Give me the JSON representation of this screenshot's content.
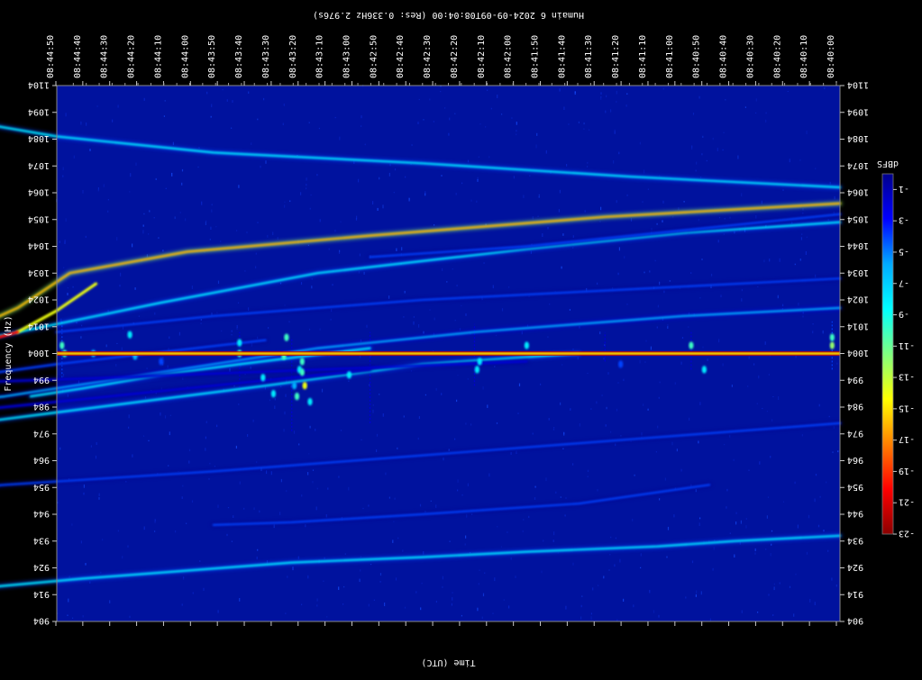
{
  "chart_data": {
    "type": "heatmap",
    "title": "Humain 6 2024-09-09T08:04:00 (Res: 0.336Hz 2.976s)",
    "xlabel": "Time (UTC)",
    "ylabel": "Frequency (Hz)",
    "x_ticks": [
      "08:40:00",
      "08:40:10",
      "08:40:20",
      "08:40:30",
      "08:40:40",
      "08:40:50",
      "08:41:00",
      "08:41:10",
      "08:41:20",
      "08:41:30",
      "08:41:40",
      "08:41:50",
      "08:42:00",
      "08:42:10",
      "08:42:20",
      "08:42:30",
      "08:42:40",
      "08:42:50",
      "08:43:00",
      "08:43:10",
      "08:43:20",
      "08:43:30",
      "08:43:40",
      "08:43:50",
      "08:44:00",
      "08:44:10",
      "08:44:20",
      "08:44:30",
      "08:44:40",
      "08:44:50"
    ],
    "y_ticks": [
      "904",
      "914",
      "924",
      "934",
      "944",
      "954",
      "964",
      "974",
      "984",
      "994",
      "1004",
      "1014",
      "1024",
      "1034",
      "1044",
      "1054",
      "1064",
      "1074",
      "1084",
      "1094",
      "1104"
    ],
    "colorbar": {
      "label": "dBFS",
      "ticks": [
        "-23",
        "-21",
        "-19",
        "-17",
        "-15",
        "-13",
        "-11",
        "-9",
        "-7",
        "-5",
        "-3",
        "-1"
      ],
      "range": [
        -23,
        0
      ],
      "colors": [
        "#00008b",
        "#0000ff",
        "#00aaff",
        "#00ffff",
        "#80ff80",
        "#ffff00",
        "#ff8000",
        "#ff0000",
        "#8b0000"
      ]
    },
    "background_color": "#00129e",
    "carrier": {
      "frequency_hz": 1004,
      "color": "#e8c200"
    },
    "traces": [
      {
        "points": [
          [
            0,
            1060
          ],
          [
            90,
            1055
          ],
          [
            180,
            1048
          ],
          [
            250,
            1042
          ],
          [
            295,
            1034
          ],
          [
            315,
            1021
          ],
          [
            340,
            1010
          ],
          [
            360,
            999
          ],
          [
            400,
            992
          ],
          [
            450,
            987
          ],
          [
            500,
            985
          ]
        ],
        "level": -7
      },
      {
        "points": [
          [
            0,
            1066
          ],
          [
            80,
            1070
          ],
          [
            160,
            1075
          ],
          [
            240,
            1079
          ],
          [
            300,
            1085
          ],
          [
            360,
            1095
          ],
          [
            420,
            1104
          ],
          [
            480,
            1113
          ],
          [
            500,
            1116
          ]
        ],
        "level": -15
      },
      {
        "points": [
          [
            0,
            1053
          ],
          [
            60,
            1049
          ],
          [
            120,
            1043
          ],
          [
            200,
            1034
          ],
          [
            260,
            1023
          ],
          [
            300,
            1015
          ],
          [
            340,
            1007
          ],
          [
            400,
            994
          ],
          [
            460,
            985
          ],
          [
            500,
            978
          ]
        ],
        "level": -15
      },
      {
        "points": [
          [
            100,
            1004
          ],
          [
            160,
            1000
          ],
          [
            220,
            992
          ],
          [
            300,
            982
          ],
          [
            380,
            972
          ],
          [
            460,
            962
          ],
          [
            500,
            955
          ]
        ],
        "level": -15
      },
      {
        "points": [
          [
            0,
            1021
          ],
          [
            60,
            1018
          ],
          [
            140,
            1012
          ],
          [
            200,
            1006
          ],
          [
            260,
            997
          ],
          [
            320,
            988
          ],
          [
            380,
            982
          ],
          [
            440,
            977
          ],
          [
            500,
            974
          ]
        ],
        "level": -17
      },
      {
        "points": [
          [
            180,
            1006
          ],
          [
            230,
            1000
          ],
          [
            260,
            996
          ],
          [
            290,
            991
          ],
          [
            310,
            988
          ]
        ],
        "level": -15
      },
      {
        "points": [
          [
            0,
            1032
          ],
          [
            80,
            1028
          ],
          [
            160,
            1024
          ],
          [
            240,
            1018
          ],
          [
            300,
            1012
          ]
        ],
        "level": -19
      },
      {
        "points": [
          [
            220,
            1009
          ],
          [
            300,
            1000
          ],
          [
            360,
            992
          ],
          [
            420,
            985
          ],
          [
            500,
            978
          ]
        ],
        "level": -19
      },
      {
        "points": [
          [
            0,
            1056
          ],
          [
            60,
            1050
          ],
          [
            120,
            1044
          ],
          [
            180,
            1040
          ]
        ],
        "level": -19
      },
      {
        "points": [
          [
            50,
            955
          ],
          [
            100,
            948
          ],
          [
            160,
            944
          ],
          [
            210,
            941
          ],
          [
            240,
            940
          ]
        ],
        "level": -19
      },
      {
        "points": [
          [
            0,
            936
          ],
          [
            40,
            934
          ],
          [
            70,
            932
          ],
          [
            120,
            930
          ],
          [
            160,
            928
          ],
          [
            210,
            926
          ],
          [
            290,
            920
          ],
          [
            380,
            912
          ],
          [
            430,
            907
          ]
        ],
        "level": -15
      },
      {
        "points": [
          [
            0,
            978
          ],
          [
            80,
            972
          ],
          [
            160,
            966
          ],
          [
            240,
            960
          ],
          [
            320,
            955
          ],
          [
            380,
            950
          ]
        ],
        "level": -19
      },
      {
        "points": [
          [
            180,
            998
          ],
          [
            240,
            992
          ],
          [
            300,
            986
          ],
          [
            360,
            980
          ],
          [
            420,
            974
          ],
          [
            500,
            967
          ],
          [
            560,
            962
          ]
        ],
        "level": -21
      },
      {
        "points": [
          [
            120,
            1001
          ],
          [
            200,
            998
          ],
          [
            280,
            995
          ],
          [
            370,
            992
          ],
          [
            460,
            989
          ]
        ],
        "level": -21
      }
    ],
    "blobs": [
      {
        "t": 212,
        "f": 1010,
        "level": -13
      },
      {
        "t": 213,
        "f": 1003,
        "level": -13
      },
      {
        "t": 206,
        "f": 1001,
        "level": -13
      },
      {
        "t": 207,
        "f": 998,
        "level": -15
      },
      {
        "t": 206,
        "f": 997,
        "level": -13
      },
      {
        "t": 221,
        "f": 995,
        "level": -15
      },
      {
        "t": 209,
        "f": 992,
        "level": -17
      },
      {
        "t": 217,
        "f": 989,
        "level": -15
      },
      {
        "t": 205,
        "f": 992,
        "level": -9
      },
      {
        "t": 208,
        "f": 988,
        "level": -13
      },
      {
        "t": 203,
        "f": 986,
        "level": -15
      },
      {
        "t": 188,
        "f": 996,
        "level": -15
      },
      {
        "t": 474,
        "f": 1011,
        "level": -15
      },
      {
        "t": 476,
        "f": 1008,
        "level": -11
      },
      {
        "t": 474,
        "f": 1002,
        "level": -15
      },
      {
        "t": 494,
        "f": 1007,
        "level": -15
      },
      {
        "t": 298,
        "f": 1007,
        "level": -13
      },
      {
        "t": 297,
        "f": 1004,
        "level": -13
      },
      {
        "t": 138,
        "f": 1001,
        "level": -15
      },
      {
        "t": 139,
        "f": 998,
        "level": -15
      },
      {
        "t": 3,
        "f": 1007,
        "level": -11
      },
      {
        "t": 3,
        "f": 1010,
        "level": -13
      },
      {
        "t": 52,
        "f": 998,
        "level": -15
      },
      {
        "t": 57,
        "f": 1007,
        "level": -13
      },
      {
        "t": 260,
        "f": 1001,
        "level": -19
      },
      {
        "t": 84,
        "f": 1000,
        "level": -19
      },
      {
        "t": 432,
        "f": 1004,
        "level": -19
      },
      {
        "t": 120,
        "f": 1007,
        "level": -15
      },
      {
        "t": 230,
        "f": 1004,
        "level": -13
      },
      {
        "t": 230,
        "f": 1008,
        "level": -15
      },
      {
        "t": 270,
        "f": 1003,
        "level": -17
      },
      {
        "t": 272,
        "f": 1011,
        "level": -15
      },
      {
        "t": 286,
        "f": 1004,
        "level": -17
      },
      {
        "t": 355,
        "f": 1006,
        "level": -19
      },
      {
        "t": 370,
        "f": 999,
        "level": -19
      }
    ],
    "streaks": [
      {
        "t": 475,
        "f_from": 995,
        "f_to": 1016,
        "level": -19
      },
      {
        "t": 298,
        "f_from": 995,
        "f_to": 1016,
        "level": -19
      },
      {
        "t": 210,
        "f_from": 975,
        "f_to": 1010,
        "level": -21
      },
      {
        "t": 180,
        "f_from": 978,
        "f_to": 1012,
        "level": -21
      },
      {
        "t": 140,
        "f_from": 992,
        "f_to": 1015,
        "level": -21
      },
      {
        "t": 380,
        "f_from": 985,
        "f_to": 1016,
        "level": -21
      },
      {
        "t": 230,
        "f_from": 990,
        "f_to": 1012,
        "level": -21
      },
      {
        "t": 3,
        "f_from": 998,
        "f_to": 1016,
        "level": -19
      },
      {
        "t": 57,
        "f_from": 998,
        "f_to": 1012,
        "level": -21
      },
      {
        "t": 90,
        "f_from": 1001,
        "f_to": 1012,
        "level": -21
      }
    ]
  }
}
